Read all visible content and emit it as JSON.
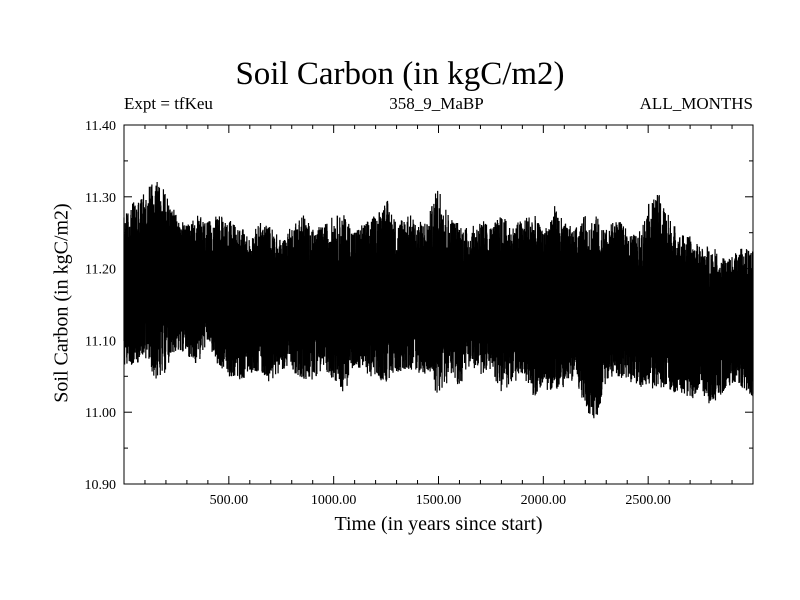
{
  "chart_data": {
    "type": "line",
    "title": "Soil Carbon (in kgC/m2)",
    "subtitle": "358_9_MaBP",
    "experiment_label": "Expt = tfKeu",
    "period_label": "ALL_MONTHS",
    "xlabel": "Time (in years since start)",
    "ylabel": "Soil Carbon (in kgC/m2)",
    "xlim": [
      0,
      3000
    ],
    "ylim": [
      10.9,
      11.4
    ],
    "xticks": [
      500,
      1000,
      1500,
      2000,
      2500
    ],
    "xtick_labels": [
      "500.00",
      "1000.00",
      "1500.00",
      "2000.00",
      "2500.00"
    ],
    "yticks": [
      10.9,
      11.0,
      11.1,
      11.2,
      11.3,
      11.4
    ],
    "ytick_labels": [
      "10.90",
      "11.00",
      "11.10",
      "11.20",
      "11.30",
      "11.40"
    ],
    "grid": false,
    "line_color": "#000000",
    "series": [
      {
        "x": [
          0,
          50,
          100,
          150,
          200,
          250,
          300,
          350,
          400,
          450,
          500,
          550,
          600,
          650,
          700,
          750,
          800,
          850,
          900,
          950,
          1000,
          1050,
          1100,
          1150,
          1200,
          1250,
          1300,
          1350,
          1400,
          1450,
          1500,
          1550,
          1600,
          1650,
          1700,
          1750,
          1800,
          1850,
          1900,
          1950,
          2000,
          2050,
          2100,
          2150,
          2200,
          2250,
          2300,
          2350,
          2400,
          2450,
          2500,
          2550,
          2600,
          2650,
          2700,
          2750,
          2800,
          2850,
          2900,
          2950,
          3000
        ],
        "min": [
          11.07,
          11.06,
          11.08,
          11.04,
          11.05,
          11.09,
          11.08,
          11.06,
          11.1,
          11.07,
          11.04,
          11.03,
          11.05,
          11.06,
          11.03,
          11.05,
          11.07,
          11.04,
          11.03,
          11.06,
          11.05,
          11.02,
          11.06,
          11.05,
          11.04,
          11.07,
          11.05,
          11.06,
          11.04,
          11.05,
          11.05,
          11.04,
          11.03,
          11.06,
          11.05,
          11.06,
          11.03,
          11.04,
          11.05,
          11.03,
          11.02,
          11.05,
          11.03,
          11.04,
          11.01,
          10.98,
          11.04,
          11.05,
          11.04,
          11.03,
          11.04,
          11.05,
          11.02,
          11.03,
          11.01,
          11.02,
          11.0,
          11.02,
          11.04,
          11.03,
          11.0
        ],
        "max": [
          11.28,
          11.29,
          11.31,
          11.33,
          11.3,
          11.28,
          11.26,
          11.27,
          11.27,
          11.28,
          11.26,
          11.25,
          11.24,
          11.27,
          11.25,
          11.23,
          11.27,
          11.28,
          11.24,
          11.26,
          11.28,
          11.27,
          11.25,
          11.26,
          11.27,
          11.33,
          11.26,
          11.28,
          11.25,
          11.27,
          11.35,
          11.27,
          11.26,
          11.25,
          11.27,
          11.26,
          11.28,
          11.26,
          11.27,
          11.29,
          11.24,
          11.31,
          11.26,
          11.25,
          11.28,
          11.27,
          11.25,
          11.27,
          11.25,
          11.24,
          11.3,
          11.32,
          11.27,
          11.25,
          11.24,
          11.22,
          11.23,
          11.21,
          11.22,
          11.23,
          11.21
        ],
        "mean": [
          11.17,
          11.18,
          11.19,
          11.19,
          11.18,
          11.18,
          11.17,
          11.17,
          11.18,
          11.17,
          11.16,
          11.15,
          11.15,
          11.16,
          11.15,
          11.15,
          11.16,
          11.16,
          11.15,
          11.16,
          11.16,
          11.15,
          11.16,
          11.16,
          11.16,
          11.17,
          11.16,
          11.17,
          11.16,
          11.16,
          11.17,
          11.16,
          11.15,
          11.16,
          11.16,
          11.16,
          11.15,
          11.15,
          11.16,
          11.15,
          11.14,
          11.16,
          11.15,
          11.15,
          11.14,
          11.13,
          11.15,
          11.16,
          11.15,
          11.14,
          11.16,
          11.17,
          11.15,
          11.14,
          11.13,
          11.13,
          11.12,
          11.12,
          11.13,
          11.13,
          11.12
        ]
      }
    ]
  }
}
